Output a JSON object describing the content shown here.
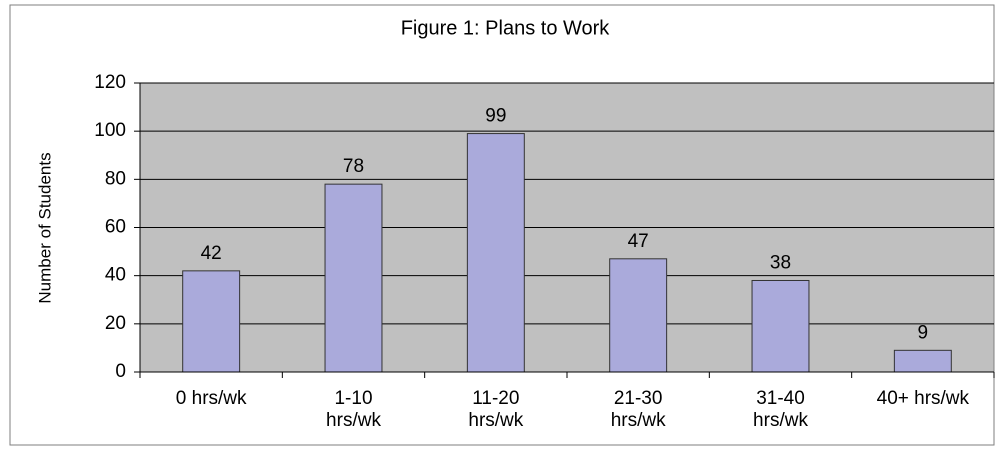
{
  "chart_data": {
    "type": "bar",
    "title": "Figure 1: Plans to Work",
    "y_label": "Number of Students",
    "categories": [
      "0 hrs/wk",
      "1-10 hrs/wk",
      "11-20 hrs/wk",
      "21-30 hrs/wk",
      "31-40 hrs/wk",
      "40+ hrs/wk"
    ],
    "values": [
      42,
      78,
      99,
      47,
      38,
      9
    ],
    "color": "#aaaadb",
    "ylim": [
      0,
      120
    ],
    "yticks": [
      0,
      20,
      40,
      60,
      80,
      100,
      120
    ],
    "grid": true
  }
}
